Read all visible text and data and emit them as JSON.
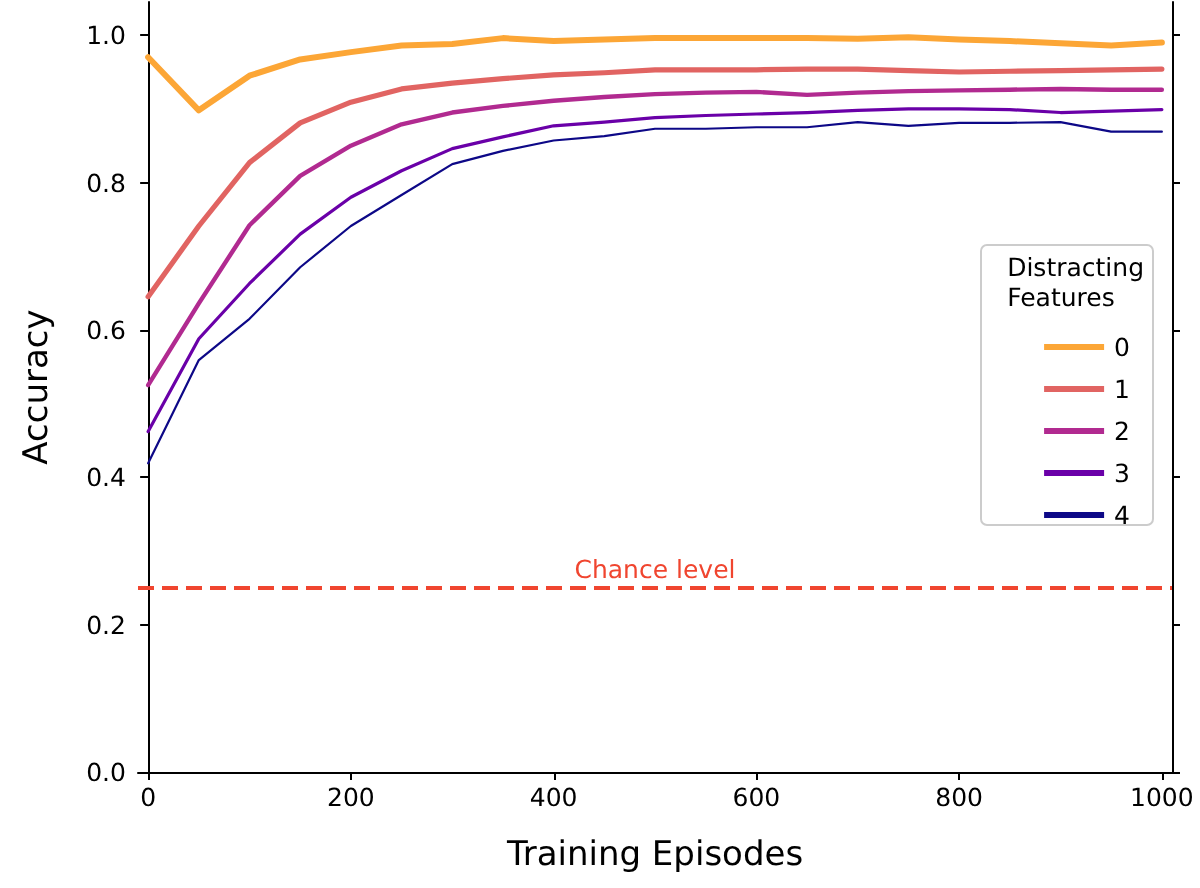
{
  "chart_data": {
    "type": "line",
    "xlabel": "Training Episodes",
    "ylabel": "Accuracy",
    "legend_title": "Distracting Features",
    "legend": "right",
    "grid": false,
    "marker": "none",
    "line_style": "solid",
    "x": [
      0,
      50,
      100,
      150,
      200,
      250,
      300,
      350,
      400,
      450,
      500,
      550,
      600,
      650,
      700,
      750,
      800,
      850,
      900,
      950,
      1000
    ],
    "xlim": [
      -10,
      1010
    ],
    "xticks": [
      0,
      200,
      400,
      600,
      800,
      1000
    ],
    "ylim": [
      0,
      1.045
    ],
    "yticks": [
      {
        "value": 0,
        "label": "0.0"
      },
      {
        "value": 0.2,
        "label": "0.2"
      },
      {
        "value": 0.4,
        "label": "0.4"
      },
      {
        "value": 0.6,
        "label": "0.6"
      },
      {
        "value": 0.8,
        "label": "0.8"
      },
      {
        "value": 1,
        "label": "1.0"
      }
    ],
    "series": [
      {
        "name": "0",
        "color": "#fca636",
        "values": [
          0.97,
          0.898,
          0.945,
          0.967,
          0.977,
          0.986,
          0.988,
          0.996,
          0.992,
          0.994,
          0.996,
          0.996,
          0.996,
          0.996,
          0.995,
          0.997,
          0.994,
          0.992,
          0.989,
          0.986,
          0.99
        ]
      },
      {
        "name": "1",
        "color": "#e16462",
        "values": [
          0.645,
          0.741,
          0.827,
          0.881,
          0.909,
          0.927,
          0.935,
          0.941,
          0.946,
          0.949,
          0.953,
          0.953,
          0.953,
          0.954,
          0.954,
          0.952,
          0.95,
          0.951,
          0.952,
          0.953,
          0.954
        ]
      },
      {
        "name": "2",
        "color": "#b12a90",
        "values": [
          0.525,
          0.636,
          0.742,
          0.809,
          0.85,
          0.879,
          0.895,
          0.904,
          0.911,
          0.916,
          0.92,
          0.922,
          0.923,
          0.919,
          0.922,
          0.924,
          0.925,
          0.926,
          0.927,
          0.926,
          0.926
        ]
      },
      {
        "name": "3",
        "color": "#6a00a8",
        "values": [
          0.462,
          0.588,
          0.663,
          0.73,
          0.78,
          0.816,
          0.846,
          0.862,
          0.877,
          0.882,
          0.888,
          0.891,
          0.893,
          0.895,
          0.898,
          0.9,
          0.9,
          0.899,
          0.895,
          0.897,
          0.899
        ]
      },
      {
        "name": "4",
        "color": "#0d0887",
        "values": [
          0.419,
          0.559,
          0.615,
          0.685,
          0.741,
          0.783,
          0.825,
          0.843,
          0.857,
          0.863,
          0.873,
          0.873,
          0.875,
          0.875,
          0.882,
          0.877,
          0.881,
          0.881,
          0.882,
          0.869,
          0.869
        ]
      }
    ],
    "ref_lines": [
      {
        "axis": "y",
        "value": 0.25,
        "label": "Chance level",
        "color": "#f0452f",
        "line_style": "dashed"
      }
    ]
  }
}
